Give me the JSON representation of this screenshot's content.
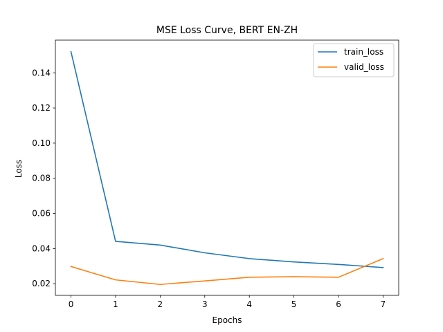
{
  "chart_data": {
    "type": "line",
    "title": "MSE Loss Curve, BERT EN-ZH",
    "xlabel": "Epochs",
    "ylabel": "Loss",
    "x": [
      0,
      1,
      2,
      3,
      4,
      5,
      6,
      7
    ],
    "xlim": [
      -0.35,
      7.35
    ],
    "ylim": [
      0.0134,
      0.1586
    ],
    "xticks": [
      "0",
      "1",
      "2",
      "3",
      "4",
      "5",
      "6",
      "7"
    ],
    "yticks": [
      0.02,
      0.04,
      0.06,
      0.08,
      0.1,
      0.12,
      0.14
    ],
    "ytick_labels": [
      "0.02",
      "0.04",
      "0.06",
      "0.08",
      "0.10",
      "0.12",
      "0.14"
    ],
    "grid": false,
    "legend_position": "top-right",
    "series": [
      {
        "name": "train_loss",
        "color": "#1f77b4",
        "values": [
          0.152,
          0.0441,
          0.042,
          0.0376,
          0.0343,
          0.0324,
          0.031,
          0.0292
        ]
      },
      {
        "name": "valid_loss",
        "color": "#ff7f0e",
        "values": [
          0.0298,
          0.0222,
          0.0196,
          0.0216,
          0.0237,
          0.024,
          0.0237,
          0.0343
        ]
      }
    ]
  }
}
